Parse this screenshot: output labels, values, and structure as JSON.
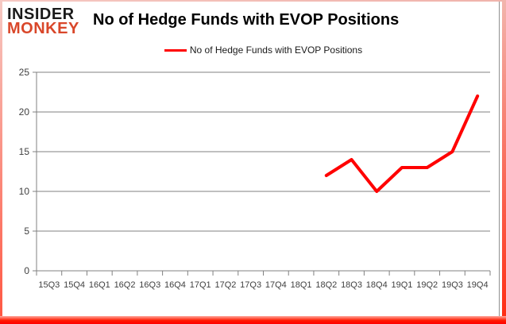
{
  "logo": {
    "line1": "INSIDER",
    "line2": "MONKEY"
  },
  "header": {
    "title": "No of Hedge Funds with EVOP Positions"
  },
  "legend": {
    "label": "No of Hedge Funds with EVOP Positions"
  },
  "colors": {
    "series_red": "#ff0000",
    "logo_red": "#d9472a",
    "gridline_gray": "#808080",
    "tick_text": "#404040"
  },
  "chart_data": {
    "type": "line",
    "title": "No of Hedge Funds with EVOP Positions",
    "categories": [
      "15Q3",
      "15Q4",
      "16Q1",
      "16Q2",
      "16Q3",
      "16Q4",
      "17Q1",
      "17Q2",
      "17Q3",
      "17Q4",
      "18Q1",
      "18Q2",
      "18Q3",
      "18Q4",
      "19Q1",
      "19Q2",
      "19Q3",
      "19Q4"
    ],
    "series": [
      {
        "name": "No of Hedge Funds with EVOP Positions",
        "color": "#ff0000",
        "values": [
          null,
          null,
          null,
          null,
          null,
          null,
          null,
          null,
          null,
          null,
          null,
          12,
          14,
          10,
          13,
          13,
          15,
          22
        ]
      }
    ],
    "xlabel": "",
    "ylabel": "",
    "ylim": [
      0,
      25
    ],
    "y_ticks": [
      0,
      5,
      10,
      15,
      20,
      25
    ],
    "grid": true,
    "legend_position": "top"
  }
}
